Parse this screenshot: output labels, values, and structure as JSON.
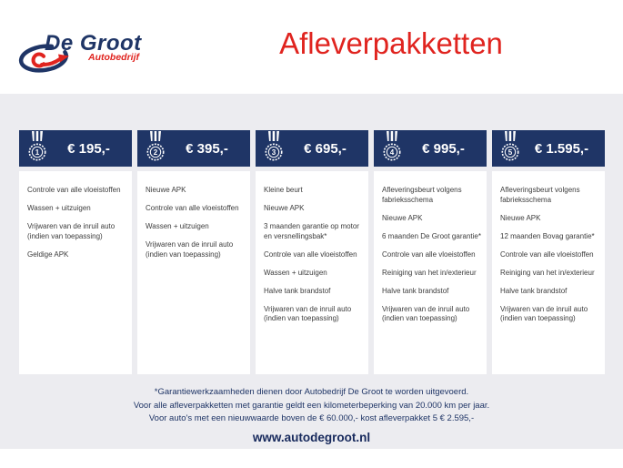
{
  "header": {
    "logo": {
      "brand": "De Groot",
      "sub": "Autobedrijf"
    },
    "title": "Afleverpakketten"
  },
  "packages": [
    {
      "number": "1",
      "price": "€ 195,-",
      "items": [
        "Controle van alle vloeistoffen",
        "Wassen + uitzuigen",
        "Vrijwaren van de inruil auto (indien van toepassing)",
        "Geldige APK"
      ]
    },
    {
      "number": "2",
      "price": "€ 395,-",
      "items": [
        "Nieuwe APK",
        "Controle van alle vloeistoffen",
        "Wassen + uitzuigen",
        "Vrijwaren van de inruil auto (indien van toepassing)"
      ]
    },
    {
      "number": "3",
      "price": "€ 695,-",
      "items": [
        "Kleine beurt",
        "Nieuwe APK",
        "3 maanden garantie op motor en versnellingsbak*",
        "Controle van alle vloeistoffen",
        "Wassen + uitzuigen",
        "Halve tank brandstof",
        "Vrijwaren van de inruil auto (indien van toepassing)"
      ]
    },
    {
      "number": "4",
      "price": "€ 995,-",
      "items": [
        "Afleveringsbeurt volgens fabrieksschema",
        "Nieuwe APK",
        "6 maanden De Groot garantie*",
        "Controle van alle vloeistoffen",
        "Reiniging van het in/exterieur",
        "Halve tank brandstof",
        "Vrijwaren van de inruil auto (indien van toepassing)"
      ]
    },
    {
      "number": "5",
      "price": "€ 1.595,-",
      "items": [
        "Afleveringsbeurt volgens fabrieksschema",
        "Nieuwe APK",
        "12 maanden Bovag garantie*",
        "Controle van alle vloeistoffen",
        "Reiniging van het in/exterieur",
        "Halve tank brandstof",
        "Vrijwaren van de inruil auto (indien van toepassing)"
      ]
    }
  ],
  "footer": {
    "notes": [
      "*Garantiewerkzaamheden dienen door Autobedrijf De Groot te worden uitgevoerd.",
      "Voor alle afleverpakketten met garantie geldt een kilometerbeperking van 20.000 km per jaar.",
      "Voor auto's met een nieuwwaarde boven de € 60.000,- kost afleverpakket 5 € 2.595,-"
    ],
    "website": "www.autodegroot.nl"
  },
  "colors": {
    "navy": "#1f3566",
    "red": "#e0241f",
    "content_background": "#ececf0",
    "card_background": "#ffffff",
    "body_text": "#3c3c3c"
  },
  "icons": {
    "medal": "medal-icon",
    "logo_swoosh": "logo-swoosh-icon"
  }
}
